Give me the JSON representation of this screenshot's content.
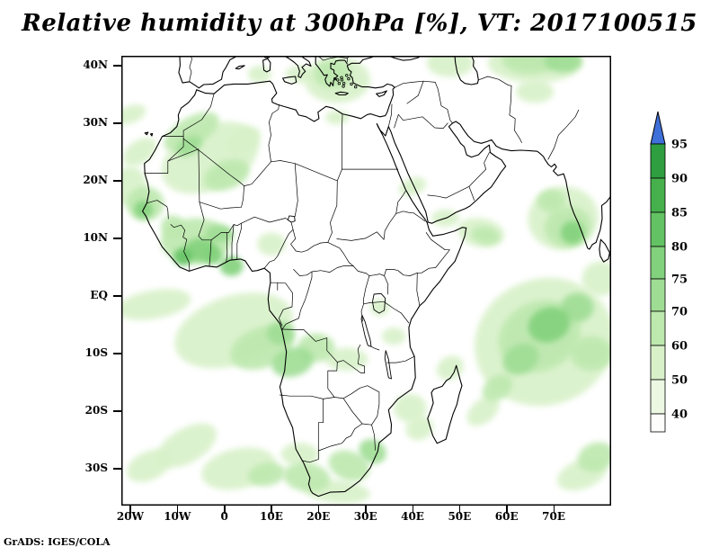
{
  "title": "Relative humidity at 300hPa [%], VT: 2017100515",
  "footer": "GrADS: IGES/COLA",
  "map": {
    "y_ticks": [
      {
        "label": "40N",
        "lat": 40
      },
      {
        "label": "30N",
        "lat": 30
      },
      {
        "label": "20N",
        "lat": 20
      },
      {
        "label": "10N",
        "lat": 10
      },
      {
        "label": "EQ",
        "lat": 0
      },
      {
        "label": "10S",
        "lat": -10
      },
      {
        "label": "20S",
        "lat": -20
      },
      {
        "label": "30S",
        "lat": -30
      }
    ],
    "x_ticks": [
      {
        "label": "20W",
        "lon": -20
      },
      {
        "label": "10W",
        "lon": -10
      },
      {
        "label": "0",
        "lon": 0
      },
      {
        "label": "10E",
        "lon": 10
      },
      {
        "label": "20E",
        "lon": 20
      },
      {
        "label": "30E",
        "lon": 30
      },
      {
        "label": "40E",
        "lon": 40
      },
      {
        "label": "50E",
        "lon": 50
      },
      {
        "label": "60E",
        "lon": 60
      },
      {
        "label": "70E",
        "lon": 70
      }
    ]
  },
  "colorbar": {
    "arrow_color": "#3f6fd8",
    "outline_color": "#000000",
    "levels": [
      40,
      50,
      60,
      70,
      75,
      80,
      85,
      90,
      95
    ],
    "range_colors": [
      "#fdfefb",
      "#ecf8e2",
      "#d8f1c9",
      "#bde8ae",
      "#9fdd94",
      "#82d17c",
      "#63c263",
      "#46b14c",
      "#2e9e40"
    ],
    "labels": [
      "95",
      "90",
      "85",
      "80",
      "75",
      "70",
      "60",
      "50",
      "40"
    ]
  },
  "chart_data": {
    "type": "heatmap",
    "title": "Relative humidity at 300hPa [%], VT: 2017100515",
    "variable": "Relative humidity",
    "pressure_level": "300hPa",
    "units": "%",
    "valid_time": "2017100515",
    "lon_range": [
      -21.9,
      82.3
    ],
    "lat_range": [
      -36.4,
      41.7
    ],
    "contour_levels": [
      40,
      50,
      60,
      70,
      75,
      80,
      85,
      90,
      95
    ],
    "legend_position": "right",
    "grid": false,
    "region_format": [
      "lon",
      "lat",
      "width_deg",
      "height_deg",
      "rotation_deg",
      "rh_percent"
    ],
    "shaded_regions": [
      [
        -3,
        24,
        22,
        11,
        -25,
        55
      ],
      [
        -7,
        28.5,
        13,
        5,
        -30,
        65
      ],
      [
        0.5,
        21,
        10,
        5,
        -20,
        65
      ],
      [
        -7.5,
        26,
        6,
        3,
        -30,
        72
      ],
      [
        -18,
        25,
        8,
        4,
        -35,
        55
      ],
      [
        -20,
        31.5,
        7,
        3,
        -20,
        55
      ],
      [
        4,
        27,
        8,
        4,
        -30,
        55
      ],
      [
        -16.8,
        16,
        8,
        6,
        0,
        65
      ],
      [
        -17.2,
        15,
        4,
        3,
        0,
        77
      ],
      [
        -20,
        19,
        7,
        7,
        0,
        55
      ],
      [
        -6,
        9.5,
        15,
        8,
        0,
        65
      ],
      [
        -5,
        8,
        7,
        4,
        0,
        77
      ],
      [
        -8.8,
        6.8,
        4,
        3,
        0,
        82
      ],
      [
        -2.5,
        7,
        4,
        3,
        0,
        77
      ],
      [
        1.5,
        5.2,
        5,
        3.5,
        0,
        77
      ],
      [
        -1,
        10.8,
        6,
        3,
        0,
        72
      ],
      [
        -11,
        12,
        5,
        4,
        0,
        65
      ],
      [
        10,
        9,
        6,
        4,
        0,
        55
      ],
      [
        -15,
        -1.5,
        16,
        5,
        -10,
        55
      ],
      [
        2,
        -6,
        26,
        12,
        -18,
        55
      ],
      [
        8,
        -9,
        14,
        7,
        -20,
        65
      ],
      [
        14.5,
        -11.5,
        9,
        5,
        -15,
        72
      ],
      [
        12,
        -6.5,
        6,
        4,
        0,
        72
      ],
      [
        19.5,
        -9,
        8,
        5,
        0,
        65
      ],
      [
        26,
        -11,
        9,
        4,
        0,
        55
      ],
      [
        -8,
        -26,
        14,
        6,
        -30,
        55
      ],
      [
        -16,
        -29.5,
        10,
        5,
        -25,
        55
      ],
      [
        3,
        -30,
        16,
        7,
        -12,
        55
      ],
      [
        9,
        -31,
        8,
        4,
        -10,
        65
      ],
      [
        17.5,
        -31.5,
        10,
        5,
        8,
        65
      ],
      [
        16,
        -27.5,
        8,
        4,
        0,
        55
      ],
      [
        26.5,
        -29.5,
        9,
        5,
        20,
        65
      ],
      [
        31.5,
        -27,
        6,
        4,
        30,
        72
      ],
      [
        24,
        -34,
        14,
        4,
        5,
        55
      ],
      [
        39.5,
        -19.5,
        7,
        5,
        0,
        55
      ],
      [
        41.5,
        -23,
        6,
        4,
        -20,
        55
      ],
      [
        48,
        -12.5,
        6,
        4,
        -30,
        55
      ],
      [
        68,
        -8,
        30,
        22,
        -20,
        55
      ],
      [
        67,
        -7,
        18,
        12,
        -25,
        65
      ],
      [
        69,
        -5,
        9,
        6,
        -20,
        77
      ],
      [
        75,
        -2,
        7,
        5,
        0,
        72
      ],
      [
        63,
        -11,
        8,
        5,
        -30,
        72
      ],
      [
        58,
        -16,
        7,
        4,
        -35,
        65
      ],
      [
        55,
        -20,
        8,
        4,
        -40,
        55
      ],
      [
        78,
        -10,
        9,
        6,
        0,
        65
      ],
      [
        80,
        3,
        8,
        6,
        0,
        55
      ],
      [
        72,
        13.5,
        15,
        11,
        -10,
        55
      ],
      [
        73,
        12,
        10,
        7,
        -10,
        65
      ],
      [
        74,
        11,
        5,
        4,
        0,
        77
      ],
      [
        69.5,
        16.5,
        6,
        4,
        0,
        65
      ],
      [
        54.5,
        11,
        10,
        5,
        10,
        55
      ],
      [
        55.5,
        10.5,
        6,
        3,
        10,
        65
      ],
      [
        47,
        13.5,
        6,
        3,
        0,
        55
      ],
      [
        40,
        19,
        6,
        3,
        -20,
        55
      ],
      [
        24,
        37.5,
        14,
        8,
        0,
        55
      ],
      [
        23,
        38.5,
        8,
        5,
        0,
        65
      ],
      [
        16,
        38.5,
        6,
        3,
        0,
        55
      ],
      [
        7.5,
        38.5,
        5,
        3,
        0,
        55
      ],
      [
        48,
        40.5,
        10,
        5,
        0,
        55
      ],
      [
        66,
        40.5,
        20,
        7,
        0,
        55
      ],
      [
        65,
        41,
        12,
        5,
        0,
        65
      ],
      [
        72,
        40.8,
        8,
        4,
        0,
        72
      ],
      [
        66,
        35.5,
        8,
        4,
        0,
        55
      ],
      [
        76,
        -31,
        11,
        5,
        -20,
        55
      ],
      [
        79,
        -28,
        8,
        5,
        -20,
        65
      ],
      [
        36,
        -7,
        5,
        3,
        0,
        55
      ],
      [
        33,
        -2,
        4,
        3,
        0,
        55
      ],
      [
        24,
        31,
        5,
        2.5,
        0,
        55
      ]
    ]
  }
}
